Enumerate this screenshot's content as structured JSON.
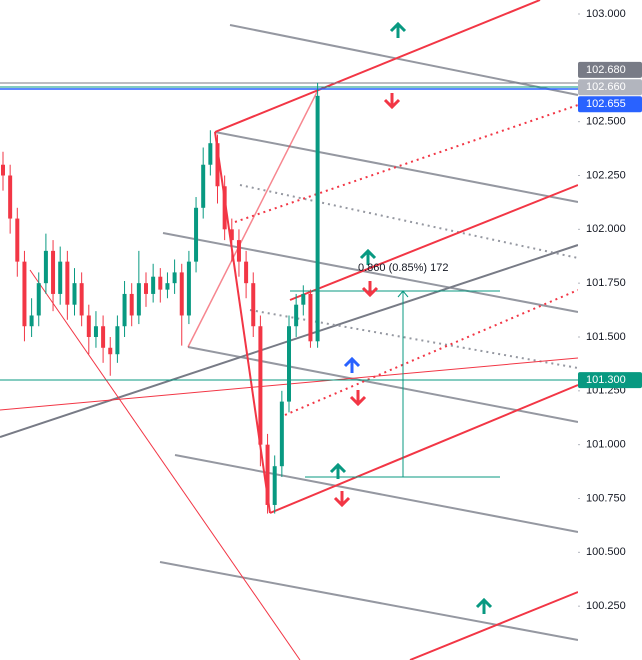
{
  "chart_data": {
    "type": "candlestick",
    "open": [
      102.3,
      102.25,
      102.05,
      101.85,
      101.55,
      101.6,
      101.75,
      101.9,
      101.7,
      101.85,
      101.65,
      101.75,
      101.6,
      101.5,
      101.55,
      101.45,
      101.42,
      101.55,
      101.7,
      101.6,
      101.75,
      101.7,
      101.78,
      101.72,
      101.75,
      101.8,
      101.6,
      101.85,
      102.1,
      102.3,
      102.4,
      102.2,
      102.0,
      101.95,
      101.85,
      101.75,
      101.55,
      101.0,
      100.72,
      100.9,
      101.2,
      101.55,
      101.65,
      101.7,
      101.48
    ],
    "high": [
      102.36,
      102.3,
      102.1,
      101.9,
      101.68,
      101.8,
      101.98,
      101.95,
      101.92,
      101.9,
      101.82,
      101.8,
      101.65,
      101.62,
      101.6,
      101.5,
      101.6,
      101.76,
      101.75,
      101.9,
      101.8,
      101.84,
      101.82,
      101.8,
      101.86,
      101.84,
      101.9,
      102.15,
      102.38,
      102.46,
      102.44,
      102.25,
      102.05,
      102.0,
      101.9,
      101.8,
      101.6,
      101.05,
      100.95,
      101.25,
      101.6,
      101.7,
      101.74,
      101.72,
      102.68
    ],
    "low": [
      102.18,
      101.98,
      101.78,
      101.48,
      101.5,
      101.55,
      101.7,
      101.62,
      101.65,
      101.58,
      101.6,
      101.55,
      101.42,
      101.45,
      101.38,
      101.32,
      101.38,
      101.5,
      101.55,
      101.56,
      101.64,
      101.66,
      101.66,
      101.68,
      101.7,
      101.46,
      101.56,
      101.8,
      102.05,
      102.25,
      102.12,
      101.95,
      101.85,
      101.78,
      101.68,
      101.5,
      100.9,
      100.68,
      100.68,
      100.85,
      101.15,
      101.5,
      101.6,
      101.45,
      101.45
    ],
    "close": [
      102.25,
      102.05,
      101.85,
      101.55,
      101.6,
      101.75,
      101.9,
      101.7,
      101.85,
      101.65,
      101.75,
      101.6,
      101.5,
      101.55,
      101.45,
      101.42,
      101.55,
      101.7,
      101.6,
      101.75,
      101.7,
      101.78,
      101.72,
      101.75,
      101.8,
      101.6,
      101.85,
      102.1,
      102.3,
      102.4,
      102.2,
      102.0,
      101.95,
      101.85,
      101.75,
      101.55,
      101.0,
      100.72,
      100.9,
      101.2,
      101.55,
      101.65,
      101.7,
      101.48,
      102.62
    ],
    "up_color": "#089981",
    "down_color": "#f23645",
    "ylim": [
      100.0,
      103.065
    ],
    "yticks": [
      {
        "value": 103,
        "label": "103.000"
      },
      {
        "value": 102.75,
        "label": "102.750"
      },
      {
        "value": 102.5,
        "label": "102.500"
      },
      {
        "value": 102.25,
        "label": "102.250"
      },
      {
        "value": 102,
        "label": "102.000"
      },
      {
        "value": 101.75,
        "label": "101.750"
      },
      {
        "value": 101.5,
        "label": "101.500"
      },
      {
        "value": 101.25,
        "label": "101.250"
      },
      {
        "value": 101,
        "label": "101.000"
      },
      {
        "value": 100.75,
        "label": "100.750"
      },
      {
        "value": 100.5,
        "label": "100.500"
      },
      {
        "value": 100.25,
        "label": "100.250"
      }
    ],
    "price_tags": [
      {
        "value": 102.68,
        "label": "102.680",
        "color": "#787b86"
      },
      {
        "value": 102.66,
        "label": "102.660",
        "color": "#b2b5be"
      },
      {
        "value": 102.655,
        "label": "102.655",
        "color": "#2962ff"
      },
      {
        "value": 101.3,
        "label": "101.300",
        "color": "#089981"
      }
    ],
    "measure": {
      "text": "0.860 (0.85%) 172"
    }
  }
}
